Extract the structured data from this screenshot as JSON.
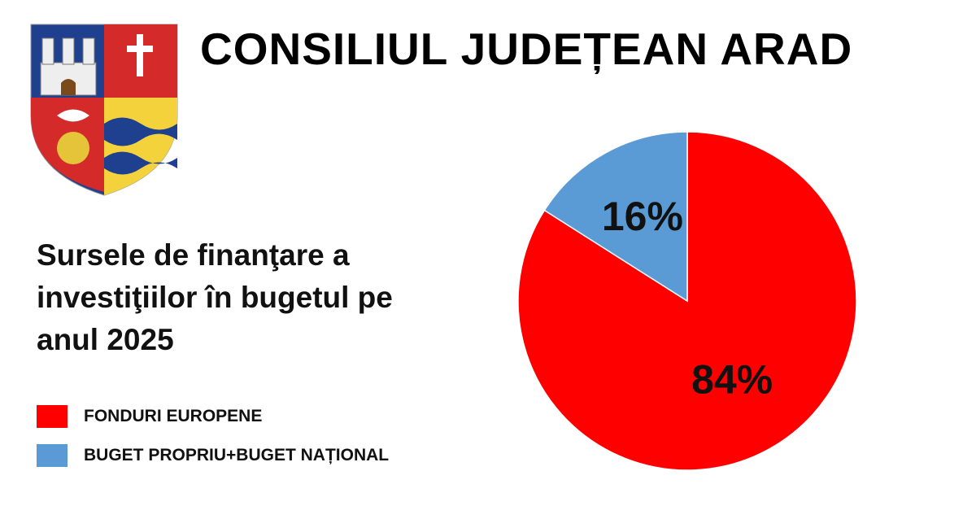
{
  "header": {
    "title": "CONSILIUL JUDEȚEAN ARAD"
  },
  "chart_data": {
    "type": "pie",
    "title": "Sursele de finanţare a investiţiilor în bugetul pe anul 2025",
    "categories": [
      "FONDURI EUROPENE",
      "BUGET PROPRIU+BUGET NAȚIONAL"
    ],
    "values": [
      84,
      16
    ],
    "value_labels": [
      "84%",
      "16%"
    ],
    "colors": [
      "#ff0000",
      "#5b9bd5"
    ]
  }
}
